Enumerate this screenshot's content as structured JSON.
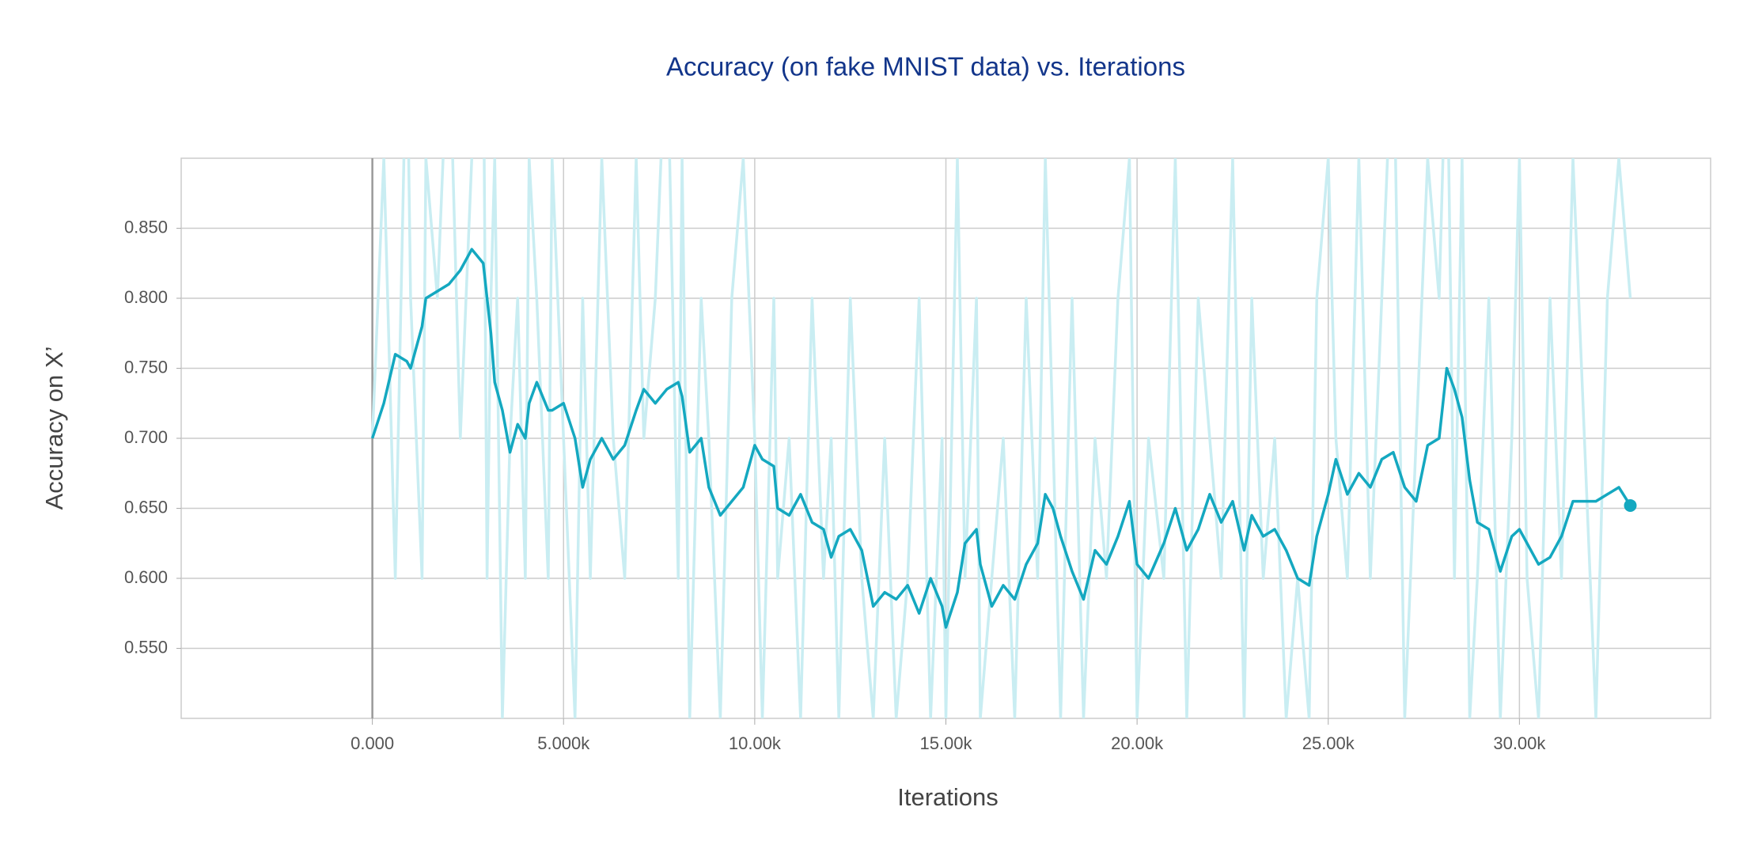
{
  "chart_data": {
    "type": "line",
    "title": "Accuracy (on fake MNIST data) vs. Iterations",
    "x_label": "Iterations",
    "y_label": "Accuracy on X’",
    "xlim": [
      -5000,
      35000
    ],
    "ylim": [
      0.5,
      0.9
    ],
    "xticks": [
      {
        "value": 0,
        "label": "0.000"
      },
      {
        "value": 5000,
        "label": "5.000k"
      },
      {
        "value": 10000,
        "label": "10.00k"
      },
      {
        "value": 15000,
        "label": "15.00k"
      },
      {
        "value": 20000,
        "label": "20.00k"
      },
      {
        "value": 25000,
        "label": "25.00k"
      },
      {
        "value": 30000,
        "label": "30.00k"
      }
    ],
    "yticks": [
      {
        "value": 0.55,
        "label": "0.550"
      },
      {
        "value": 0.6,
        "label": "0.600"
      },
      {
        "value": 0.65,
        "label": "0.650"
      },
      {
        "value": 0.7,
        "label": "0.700"
      },
      {
        "value": 0.75,
        "label": "0.750"
      },
      {
        "value": 0.8,
        "label": "0.800"
      },
      {
        "value": 0.85,
        "label": "0.850"
      }
    ],
    "grid": true,
    "x": [
      0,
      300,
      600,
      900,
      1000,
      1300,
      1400,
      1700,
      2000,
      2300,
      2600,
      2900,
      3000,
      3100,
      3200,
      3400,
      3600,
      3800,
      4000,
      4100,
      4300,
      4600,
      4700,
      5000,
      5300,
      5500,
      5700,
      6000,
      6300,
      6600,
      6900,
      7100,
      7400,
      7700,
      8000,
      8100,
      8300,
      8600,
      8800,
      9100,
      9400,
      9700,
      10000,
      10200,
      10500,
      10600,
      10900,
      11200,
      11500,
      11800,
      12000,
      12200,
      12500,
      12800,
      13100,
      13400,
      13700,
      14000,
      14300,
      14600,
      14900,
      15000,
      15300,
      15500,
      15800,
      15900,
      16200,
      16500,
      16800,
      17100,
      17400,
      17600,
      17800,
      18000,
      18300,
      18600,
      18900,
      19200,
      19500,
      19800,
      20000,
      20300,
      20700,
      21000,
      21300,
      21600,
      21900,
      22200,
      22500,
      22800,
      23000,
      23300,
      23600,
      23900,
      24200,
      24500,
      24700,
      25000,
      25200,
      25500,
      25800,
      26100,
      26400,
      26700,
      27000,
      27300,
      27600,
      27900,
      28100,
      28300,
      28500,
      28700,
      28900,
      29200,
      29500,
      29800,
      30000,
      30200,
      30500,
      30800,
      31100,
      31400,
      31700,
      32000,
      32300,
      32600,
      32900
    ],
    "series": [
      {
        "color": "#c9edf2",
        "values": [
          0.7,
          0.9,
          0.6,
          1.0,
          0.8,
          0.6,
          0.9,
          0.8,
          1.0,
          0.7,
          0.9,
          1.0,
          0.6,
          0.8,
          0.9,
          0.5,
          0.7,
          0.8,
          0.6,
          0.9,
          0.8,
          0.6,
          0.9,
          0.7,
          0.5,
          0.8,
          0.6,
          0.9,
          0.7,
          0.6,
          0.9,
          0.7,
          0.8,
          1.0,
          0.6,
          0.9,
          0.5,
          0.8,
          0.7,
          0.5,
          0.8,
          0.9,
          0.7,
          0.5,
          0.8,
          0.6,
          0.7,
          0.5,
          0.8,
          0.6,
          0.7,
          0.5,
          0.8,
          0.6,
          0.5,
          0.7,
          0.5,
          0.6,
          0.8,
          0.5,
          0.7,
          0.5,
          0.9,
          0.6,
          0.8,
          0.5,
          0.6,
          0.7,
          0.5,
          0.8,
          0.6,
          0.9,
          0.7,
          0.5,
          0.8,
          0.5,
          0.7,
          0.6,
          0.8,
          0.9,
          0.5,
          0.7,
          0.6,
          0.9,
          0.5,
          0.8,
          0.7,
          0.6,
          0.9,
          0.5,
          0.8,
          0.6,
          0.7,
          0.5,
          0.6,
          0.5,
          0.8,
          0.9,
          0.7,
          0.6,
          0.9,
          0.6,
          0.8,
          1.0,
          0.5,
          0.7,
          0.9,
          0.8,
          1.0,
          0.6,
          0.9,
          0.5,
          0.6,
          0.8,
          0.5,
          0.7,
          0.9,
          0.6,
          0.5,
          0.8,
          0.6,
          0.9,
          0.7,
          0.5,
          0.8,
          0.9,
          0.8
        ]
      },
      {
        "color": "#14a8c0",
        "values": [
          0.7,
          0.725,
          0.76,
          0.755,
          0.75,
          0.78,
          0.8,
          0.805,
          0.81,
          0.82,
          0.835,
          0.825,
          0.8,
          0.775,
          0.74,
          0.72,
          0.69,
          0.71,
          0.7,
          0.725,
          0.74,
          0.72,
          0.72,
          0.725,
          0.7,
          0.665,
          0.685,
          0.7,
          0.685,
          0.695,
          0.72,
          0.735,
          0.725,
          0.735,
          0.74,
          0.73,
          0.69,
          0.7,
          0.665,
          0.645,
          0.655,
          0.665,
          0.695,
          0.685,
          0.68,
          0.65,
          0.645,
          0.66,
          0.64,
          0.635,
          0.615,
          0.63,
          0.635,
          0.62,
          0.58,
          0.59,
          0.585,
          0.595,
          0.575,
          0.6,
          0.58,
          0.565,
          0.59,
          0.625,
          0.635,
          0.61,
          0.58,
          0.595,
          0.585,
          0.61,
          0.625,
          0.66,
          0.65,
          0.63,
          0.605,
          0.585,
          0.62,
          0.61,
          0.63,
          0.655,
          0.61,
          0.6,
          0.625,
          0.65,
          0.62,
          0.635,
          0.66,
          0.64,
          0.655,
          0.62,
          0.645,
          0.63,
          0.635,
          0.62,
          0.6,
          0.595,
          0.63,
          0.66,
          0.685,
          0.66,
          0.675,
          0.665,
          0.685,
          0.69,
          0.665,
          0.655,
          0.695,
          0.7,
          0.75,
          0.735,
          0.715,
          0.67,
          0.64,
          0.635,
          0.605,
          0.63,
          0.635,
          0.625,
          0.61,
          0.615,
          0.63,
          0.655,
          0.655,
          0.655,
          0.66,
          0.665,
          0.652
        ]
      }
    ]
  }
}
